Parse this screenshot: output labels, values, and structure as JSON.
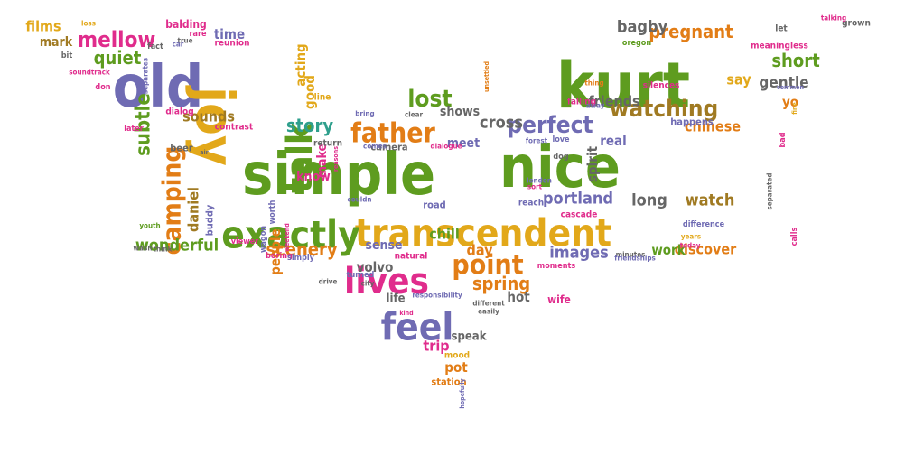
{
  "palette": {
    "green": "#5e9c1f",
    "purple": "#6f6bb3",
    "orange": "#e27d16",
    "yellow": "#e2a81a",
    "pink": "#e02c8c",
    "teal": "#2e9f8c",
    "brown": "#a07a22",
    "gray": "#666666"
  },
  "words": [
    {
      "text": "simple",
      "color": "green"
    },
    {
      "text": "nice",
      "color": "green"
    },
    {
      "text": "kurt",
      "color": "green"
    },
    {
      "text": "old",
      "color": "purple"
    },
    {
      "text": "joy",
      "color": "yellow"
    },
    {
      "text": "transcendent",
      "color": "yellow"
    },
    {
      "text": "exactly",
      "color": "green"
    },
    {
      "text": "lives",
      "color": "pink"
    },
    {
      "text": "feel",
      "color": "purple"
    },
    {
      "text": "talk",
      "color": "green"
    },
    {
      "text": "father",
      "color": "orange"
    },
    {
      "text": "perfect",
      "color": "purple"
    },
    {
      "text": "watching",
      "color": "brown"
    },
    {
      "text": "point",
      "color": "orange"
    },
    {
      "text": "mellow",
      "color": "pink"
    },
    {
      "text": "camping",
      "color": "orange"
    },
    {
      "text": "lost",
      "color": "green"
    },
    {
      "text": "story",
      "color": "teal"
    },
    {
      "text": "quiet",
      "color": "green"
    },
    {
      "text": "pregnant",
      "color": "orange"
    },
    {
      "text": "short",
      "color": "green"
    },
    {
      "text": "subtle",
      "color": "green"
    },
    {
      "text": "films",
      "color": "yellow"
    },
    {
      "text": "mark",
      "color": "brown"
    },
    {
      "text": "wonderful",
      "color": "green"
    },
    {
      "text": "scenery",
      "color": "orange"
    },
    {
      "text": "spring",
      "color": "orange"
    },
    {
      "text": "images",
      "color": "purple"
    },
    {
      "text": "portland",
      "color": "purple"
    },
    {
      "text": "long",
      "color": "gray"
    },
    {
      "text": "watch",
      "color": "brown"
    },
    {
      "text": "discover",
      "color": "orange"
    },
    {
      "text": "cross",
      "color": "gray"
    },
    {
      "text": "friends",
      "color": "gray"
    },
    {
      "text": "gentle",
      "color": "gray"
    },
    {
      "text": "bagby",
      "color": "gray"
    },
    {
      "text": "chinese",
      "color": "orange"
    },
    {
      "text": "sounds",
      "color": "brown"
    },
    {
      "text": "daniel",
      "color": "brown"
    },
    {
      "text": "people",
      "color": "orange"
    },
    {
      "text": "know",
      "color": "pink"
    },
    {
      "text": "make",
      "color": "pink"
    },
    {
      "text": "chill",
      "color": "green"
    },
    {
      "text": "day",
      "color": "orange"
    },
    {
      "text": "work",
      "color": "green"
    },
    {
      "text": "volvo",
      "color": "gray"
    },
    {
      "text": "trip",
      "color": "pink"
    },
    {
      "text": "pot",
      "color": "orange"
    },
    {
      "text": "hot",
      "color": "gray"
    },
    {
      "text": "life",
      "color": "gray"
    },
    {
      "text": "real",
      "color": "purple"
    },
    {
      "text": "spirit",
      "color": "gray"
    },
    {
      "text": "meet",
      "color": "purple"
    },
    {
      "text": "shows",
      "color": "gray"
    },
    {
      "text": "good",
      "color": "yellow"
    },
    {
      "text": "acting",
      "color": "yellow"
    },
    {
      "text": "time",
      "color": "purple"
    },
    {
      "text": "say",
      "color": "yellow"
    },
    {
      "text": "yo",
      "color": "orange"
    },
    {
      "text": "sense",
      "color": "purple"
    },
    {
      "text": "speak",
      "color": "gray"
    },
    {
      "text": "station",
      "color": "orange"
    },
    {
      "text": "wife",
      "color": "pink"
    },
    {
      "text": "buddy",
      "color": "purple"
    },
    {
      "text": "beer",
      "color": "gray"
    },
    {
      "text": "balding",
      "color": "pink"
    },
    {
      "text": "reunion",
      "color": "pink"
    },
    {
      "text": "camera",
      "color": "gray"
    },
    {
      "text": "return",
      "color": "gray"
    },
    {
      "text": "road",
      "color": "purple"
    },
    {
      "text": "reach",
      "color": "purple"
    },
    {
      "text": "happens",
      "color": "purple"
    },
    {
      "text": "silences",
      "color": "pink"
    },
    {
      "text": "falling",
      "color": "pink"
    },
    {
      "text": "cascade",
      "color": "pink"
    },
    {
      "text": "meaningless",
      "color": "pink"
    },
    {
      "text": "dialog",
      "color": "pink"
    },
    {
      "text": "contrast",
      "color": "pink"
    },
    {
      "text": "later",
      "color": "pink"
    },
    {
      "text": "don",
      "color": "pink"
    },
    {
      "text": "fact",
      "color": "gray"
    },
    {
      "text": "bit",
      "color": "gray"
    },
    {
      "text": "line",
      "color": "yellow"
    },
    {
      "text": "mood",
      "color": "yellow"
    },
    {
      "text": "natural",
      "color": "pink"
    },
    {
      "text": "love",
      "color": "purple"
    },
    {
      "text": "dog",
      "color": "gray"
    },
    {
      "text": "let",
      "color": "gray"
    },
    {
      "text": "grown",
      "color": "gray"
    },
    {
      "text": "talking",
      "color": "pink"
    },
    {
      "text": "oregon",
      "color": "green"
    },
    {
      "text": "bad",
      "color": "pink"
    },
    {
      "text": "calls",
      "color": "pink"
    },
    {
      "text": "separated",
      "color": "gray"
    },
    {
      "text": "worth",
      "color": "purple"
    },
    {
      "text": "viewer",
      "color": "pink"
    },
    {
      "text": "wagon",
      "color": "purple"
    },
    {
      "text": "youth",
      "color": "green"
    },
    {
      "text": "think",
      "color": "gray"
    },
    {
      "text": "wasn",
      "color": "gray"
    },
    {
      "text": "boring",
      "color": "pink"
    },
    {
      "text": "simply",
      "color": "purple"
    },
    {
      "text": "turned",
      "color": "purple"
    },
    {
      "text": "city",
      "color": "gray"
    },
    {
      "text": "responsibility",
      "color": "purple"
    },
    {
      "text": "different",
      "color": "gray"
    },
    {
      "text": "easily",
      "color": "gray"
    },
    {
      "text": "kind",
      "color": "pink"
    },
    {
      "text": "moments",
      "color": "pink"
    },
    {
      "text": "minutes",
      "color": "gray"
    },
    {
      "text": "difference",
      "color": "purple"
    },
    {
      "text": "today",
      "color": "pink"
    },
    {
      "text": "years",
      "color": "yellow"
    },
    {
      "text": "soundtrack",
      "color": "pink"
    },
    {
      "text": "separates",
      "color": "purple"
    },
    {
      "text": "loss",
      "color": "yellow"
    },
    {
      "text": "rare",
      "color": "pink"
    },
    {
      "text": "car",
      "color": "purple"
    },
    {
      "text": "true",
      "color": "gray"
    },
    {
      "text": "bring",
      "color": "purple"
    },
    {
      "text": "clear",
      "color": "gray"
    },
    {
      "text": "dialogue",
      "color": "pink"
    },
    {
      "text": "comes",
      "color": "purple"
    },
    {
      "text": "forest",
      "color": "purple"
    },
    {
      "text": "couldn",
      "color": "purple"
    },
    {
      "text": "drive",
      "color": "gray"
    },
    {
      "text": "sort",
      "color": "pink"
    },
    {
      "text": "london",
      "color": "purple"
    },
    {
      "text": "friendships",
      "color": "purple"
    },
    {
      "text": "thing",
      "color": "orange"
    },
    {
      "text": "away",
      "color": "purple"
    },
    {
      "text": "common",
      "color": "purple"
    },
    {
      "text": "hopefully",
      "color": "purple"
    },
    {
      "text": "unsettled",
      "color": "orange"
    },
    {
      "text": "weekend",
      "color": "pink"
    },
    {
      "text": "reasons",
      "color": "pink"
    },
    {
      "text": "fine",
      "color": "yellow"
    },
    {
      "text": "air",
      "color": "gray"
    }
  ]
}
